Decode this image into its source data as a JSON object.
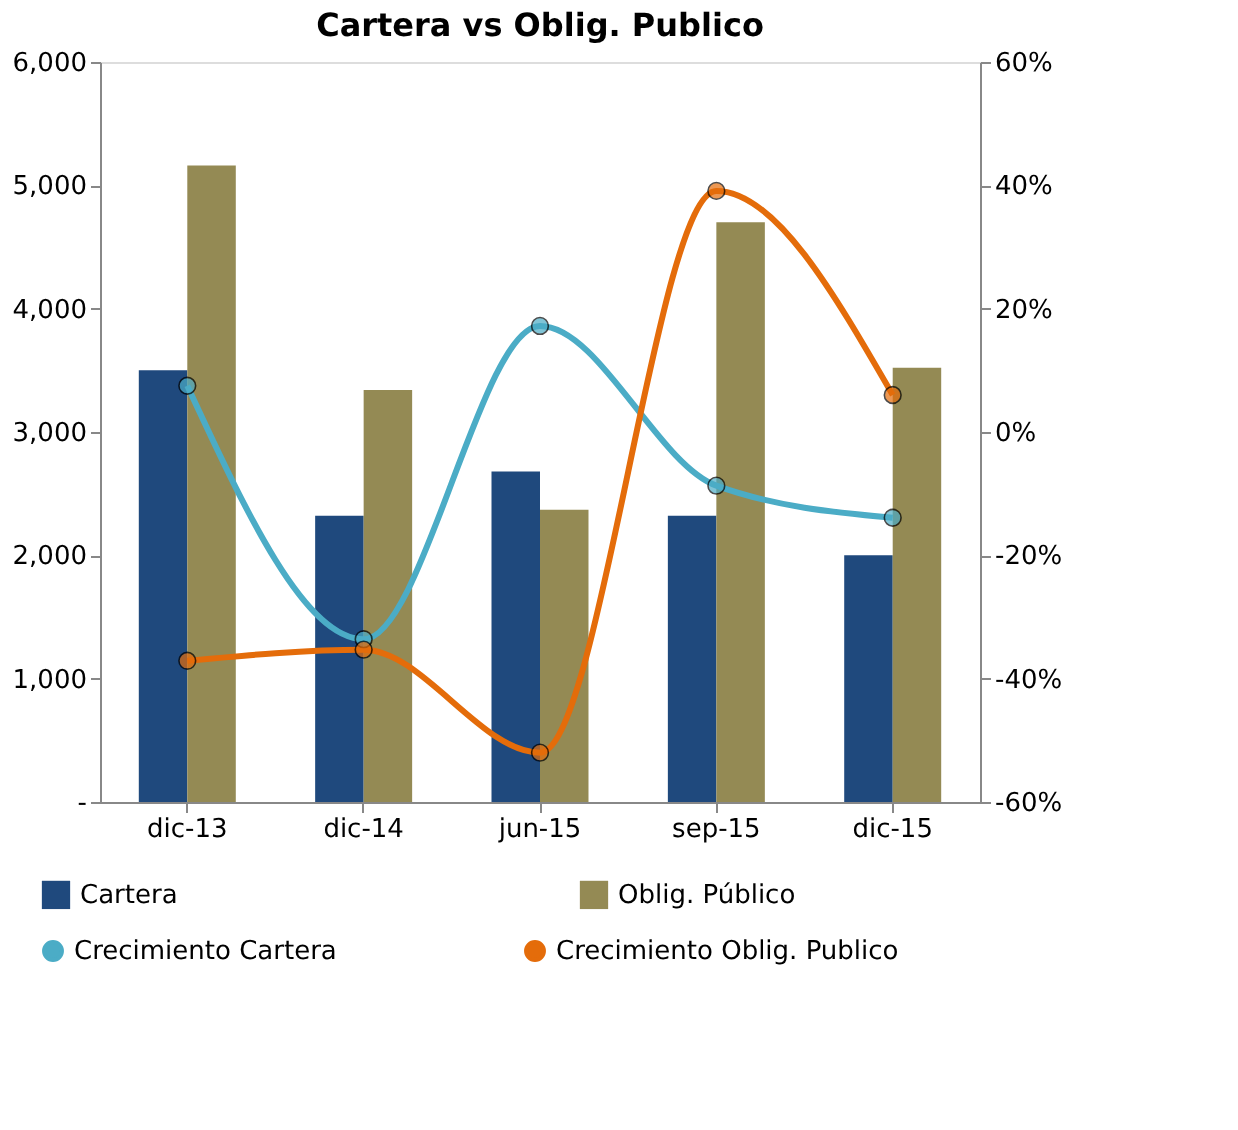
{
  "chart_data": {
    "type": "bar",
    "title": "Cartera vs Oblig. Publico",
    "categories": [
      "dic-13",
      "dic-14",
      "jun-15",
      "sep-15",
      "dic-15"
    ],
    "series": [
      {
        "name": "Cartera",
        "color": "#1f497d",
        "values": [
          3500,
          2320,
          2680,
          2320,
          2000
        ]
      },
      {
        "name": "Oblig. Público",
        "color": "#948a54",
        "values": [
          5160,
          3340,
          2370,
          4700,
          3520
        ]
      },
      {
        "name": "Crecimiento Cartera",
        "type": "line",
        "axis": "y2",
        "color": "#4bacc6",
        "marker": "circle",
        "values": [
          7.5,
          -33.6,
          17.2,
          -8.7,
          -13.9
        ]
      },
      {
        "name": "Crecimiento Oblig. Publico",
        "type": "line",
        "axis": "y2",
        "color": "#e46c0a",
        "marker": "circle",
        "values": [
          -37.1,
          -35.3,
          -52,
          39.1,
          6.0
        ]
      }
    ],
    "ylim": [
      0,
      6000
    ],
    "yticks": [
      {
        "value": 0,
        "label": "-"
      },
      {
        "value": 1000,
        "label": "1,000"
      },
      {
        "value": 2000,
        "label": "2,000"
      },
      {
        "value": 3000,
        "label": "3,000"
      },
      {
        "value": 4000,
        "label": "4,000"
      },
      {
        "value": 5000,
        "label": "5,000"
      },
      {
        "value": 6000,
        "label": "6,000"
      }
    ],
    "y2lim": [
      -60,
      60
    ],
    "y2ticks": [
      {
        "value": -60,
        "label": "-60%"
      },
      {
        "value": -40,
        "label": "-40%"
      },
      {
        "value": -20,
        "label": "-20%"
      },
      {
        "value": 0,
        "label": "0%"
      },
      {
        "value": 20,
        "label": "20%"
      },
      {
        "value": 40,
        "label": "40%"
      },
      {
        "value": 60,
        "label": "60%"
      }
    ],
    "grid": false,
    "legend": "bottom"
  }
}
